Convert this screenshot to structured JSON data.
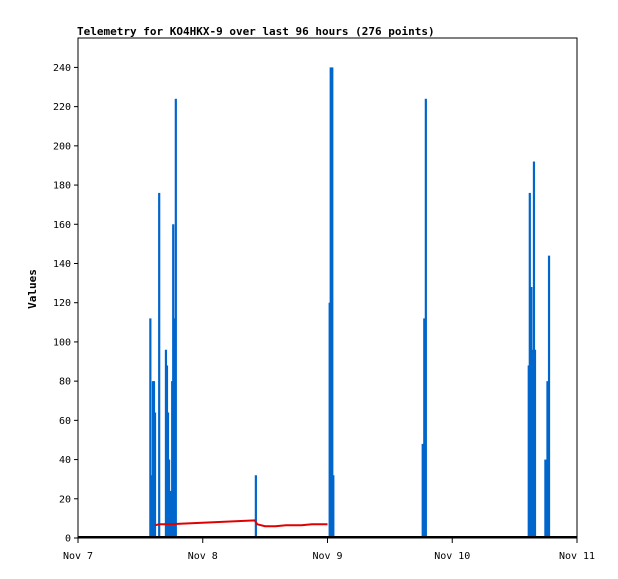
{
  "chart_data": {
    "type": "bar",
    "title": "Telemetry for KO4HKX-9 over last 96 hours (276 points)",
    "xlabel": "",
    "ylabel": "Values",
    "x_axis_type": "time_hours",
    "xlim": [
      0,
      96
    ],
    "ylim": [
      0,
      255
    ],
    "x_ticks": [
      {
        "label": "Nov 7",
        "value": 0
      },
      {
        "label": "Nov 8",
        "value": 24
      },
      {
        "label": "Nov 9",
        "value": 48
      },
      {
        "label": "Nov 10",
        "value": 72
      },
      {
        "label": "Nov 11",
        "value": 96
      }
    ],
    "y_ticks": [
      0,
      20,
      40,
      60,
      80,
      100,
      120,
      140,
      160,
      180,
      200,
      220,
      240
    ],
    "grid": false,
    "legend": "none",
    "colors": {
      "bars": "#0066cc",
      "line": "#e00000",
      "axis": "#000000"
    },
    "series": [
      {
        "type": "bar",
        "points": [
          [
            13.9,
            112
          ],
          [
            14.2,
            32
          ],
          [
            14.4,
            80
          ],
          [
            14.6,
            80
          ],
          [
            14.8,
            64
          ],
          [
            15.6,
            176
          ],
          [
            16.9,
            96
          ],
          [
            17.1,
            88
          ],
          [
            17.3,
            64
          ],
          [
            17.5,
            40
          ],
          [
            17.8,
            24
          ],
          [
            18.1,
            80
          ],
          [
            18.3,
            160
          ],
          [
            18.6,
            112
          ],
          [
            18.8,
            224
          ],
          [
            34.2,
            32
          ],
          [
            48.4,
            120
          ],
          [
            48.6,
            240
          ],
          [
            48.9,
            240
          ],
          [
            49.1,
            32
          ],
          [
            66.3,
            48
          ],
          [
            66.6,
            112
          ],
          [
            66.9,
            224
          ],
          [
            86.7,
            88
          ],
          [
            86.9,
            176
          ],
          [
            87.2,
            128
          ],
          [
            87.4,
            96
          ],
          [
            87.7,
            192
          ],
          [
            87.9,
            96
          ],
          [
            89.9,
            40
          ],
          [
            90.3,
            80
          ],
          [
            90.6,
            144
          ]
        ]
      },
      {
        "type": "line",
        "points": [
          [
            14.8,
            6.5
          ],
          [
            15.6,
            7
          ],
          [
            16.5,
            7
          ],
          [
            17.5,
            7
          ],
          [
            34.0,
            9
          ],
          [
            34.5,
            7
          ],
          [
            36.0,
            6
          ],
          [
            38.0,
            6
          ],
          [
            40.0,
            6.5
          ],
          [
            43.0,
            6.5
          ],
          [
            45.0,
            7
          ],
          [
            48.0,
            7
          ]
        ]
      },
      {
        "type": "line",
        "points": [
          [
            0,
            0.5
          ],
          [
            96,
            0.5
          ]
        ]
      }
    ]
  }
}
